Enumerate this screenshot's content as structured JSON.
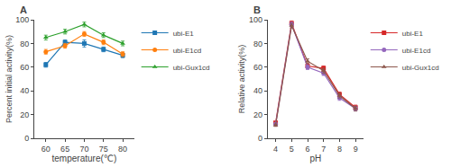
{
  "chart_data": [
    {
      "type": "line",
      "x": [
        60,
        65,
        70,
        75,
        80
      ],
      "xlabel": "temperature(℃)",
      "ylabel": "Percent initial activity(%)",
      "xlim": [
        57,
        83
      ],
      "ylim": [
        0,
        100
      ],
      "xticks": [
        60,
        65,
        70,
        75,
        80
      ],
      "yticks": [
        0,
        20,
        40,
        60,
        80,
        100
      ],
      "grid": false,
      "legend": "upper right",
      "annotations": [
        "A"
      ],
      "series": [
        {
          "name": "ubi-E1",
          "marker": "square",
          "values": [
            62,
            81,
            80,
            75,
            70
          ],
          "errors": [
            2,
            2,
            3,
            2,
            2
          ]
        },
        {
          "name": "ubi-E1cd",
          "marker": "circle",
          "values": [
            73,
            78,
            88,
            81,
            71
          ],
          "errors": [
            2,
            2,
            2,
            2,
            2
          ]
        },
        {
          "name": "ubi-Gux1cd",
          "marker": "triangle-up",
          "values": [
            85,
            90,
            96,
            87,
            80
          ],
          "errors": [
            2,
            2,
            2,
            2,
            2
          ]
        }
      ]
    },
    {
      "type": "line",
      "x": [
        4,
        5,
        6,
        7,
        8,
        9
      ],
      "xlabel": "pH",
      "ylabel": "Relative activity(%)",
      "xlim": [
        3.5,
        9.5
      ],
      "ylim": [
        0,
        100
      ],
      "xticks": [
        4,
        5,
        6,
        7,
        8,
        9
      ],
      "yticks": [
        0,
        20,
        40,
        60,
        80,
        100
      ],
      "grid": false,
      "legend": "upper right",
      "annotations": [
        "B"
      ],
      "series": [
        {
          "name": "ubi-E1",
          "marker": "square",
          "values": [
            13,
            97,
            61,
            59,
            37,
            26
          ],
          "errors": [
            1,
            2,
            2,
            2,
            2,
            2
          ]
        },
        {
          "name": "ubi-E1cd",
          "marker": "circle",
          "values": [
            12,
            96,
            60,
            55,
            34,
            25
          ],
          "errors": [
            1,
            2,
            2,
            2,
            2,
            2
          ]
        },
        {
          "name": "ubi-Gux1cd",
          "marker": "triangle-up",
          "values": [
            11,
            95,
            65,
            57,
            36,
            25
          ],
          "errors": [
            1,
            2,
            2,
            2,
            2,
            2
          ]
        }
      ]
    }
  ]
}
